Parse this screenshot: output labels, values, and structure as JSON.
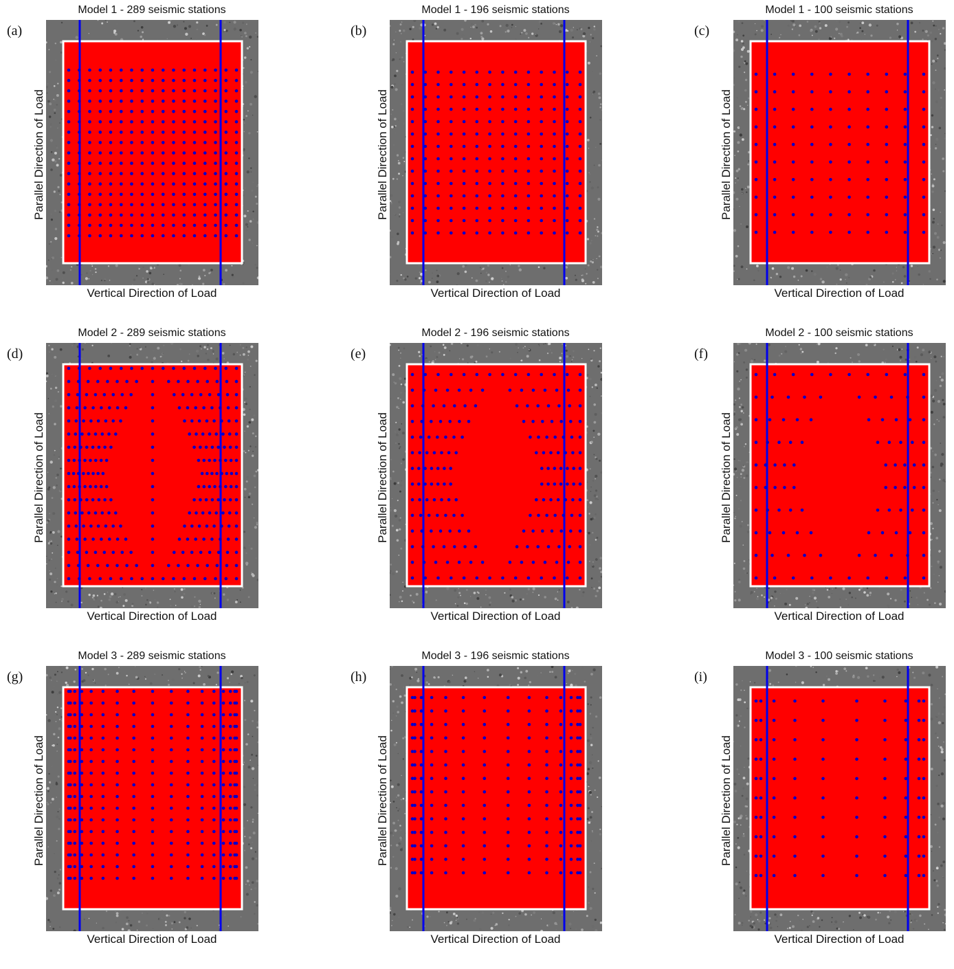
{
  "colors": {
    "background_texture": "#6e6e6e",
    "specimen": "#ff0000",
    "border": "#ffffff",
    "load_lines": "#0000ee",
    "stations": "#0000cc"
  },
  "axis_labels": {
    "x": "Vertical Direction of Load",
    "y": "Parallel Direction of Load"
  },
  "panels": [
    {
      "letter": "(a)",
      "title": "Model 1 - 289 seismic stations",
      "model": 1,
      "stations": 289
    },
    {
      "letter": "(b)",
      "title": "Model 1 - 196 seismic stations",
      "model": 1,
      "stations": 196
    },
    {
      "letter": "(c)",
      "title": "Model 1 - 100 seismic stations",
      "model": 1,
      "stations": 100
    },
    {
      "letter": "(d)",
      "title": "Model 2 - 289 seismic stations",
      "model": 2,
      "stations": 289
    },
    {
      "letter": "(e)",
      "title": "Model 2 - 196 seismic stations",
      "model": 2,
      "stations": 196
    },
    {
      "letter": "(f)",
      "title": "Model 2 - 100 seismic stations",
      "model": 2,
      "stations": 100
    },
    {
      "letter": "(g)",
      "title": "Model 3 - 289 seismic stations",
      "model": 3,
      "stations": 289
    },
    {
      "letter": "(h)",
      "title": "Model 3 - 196 seismic stations",
      "model": 3,
      "stations": 196
    },
    {
      "letter": "(i)",
      "title": "Model 3 - 100 seismic stations",
      "model": 3,
      "stations": 100
    }
  ]
}
